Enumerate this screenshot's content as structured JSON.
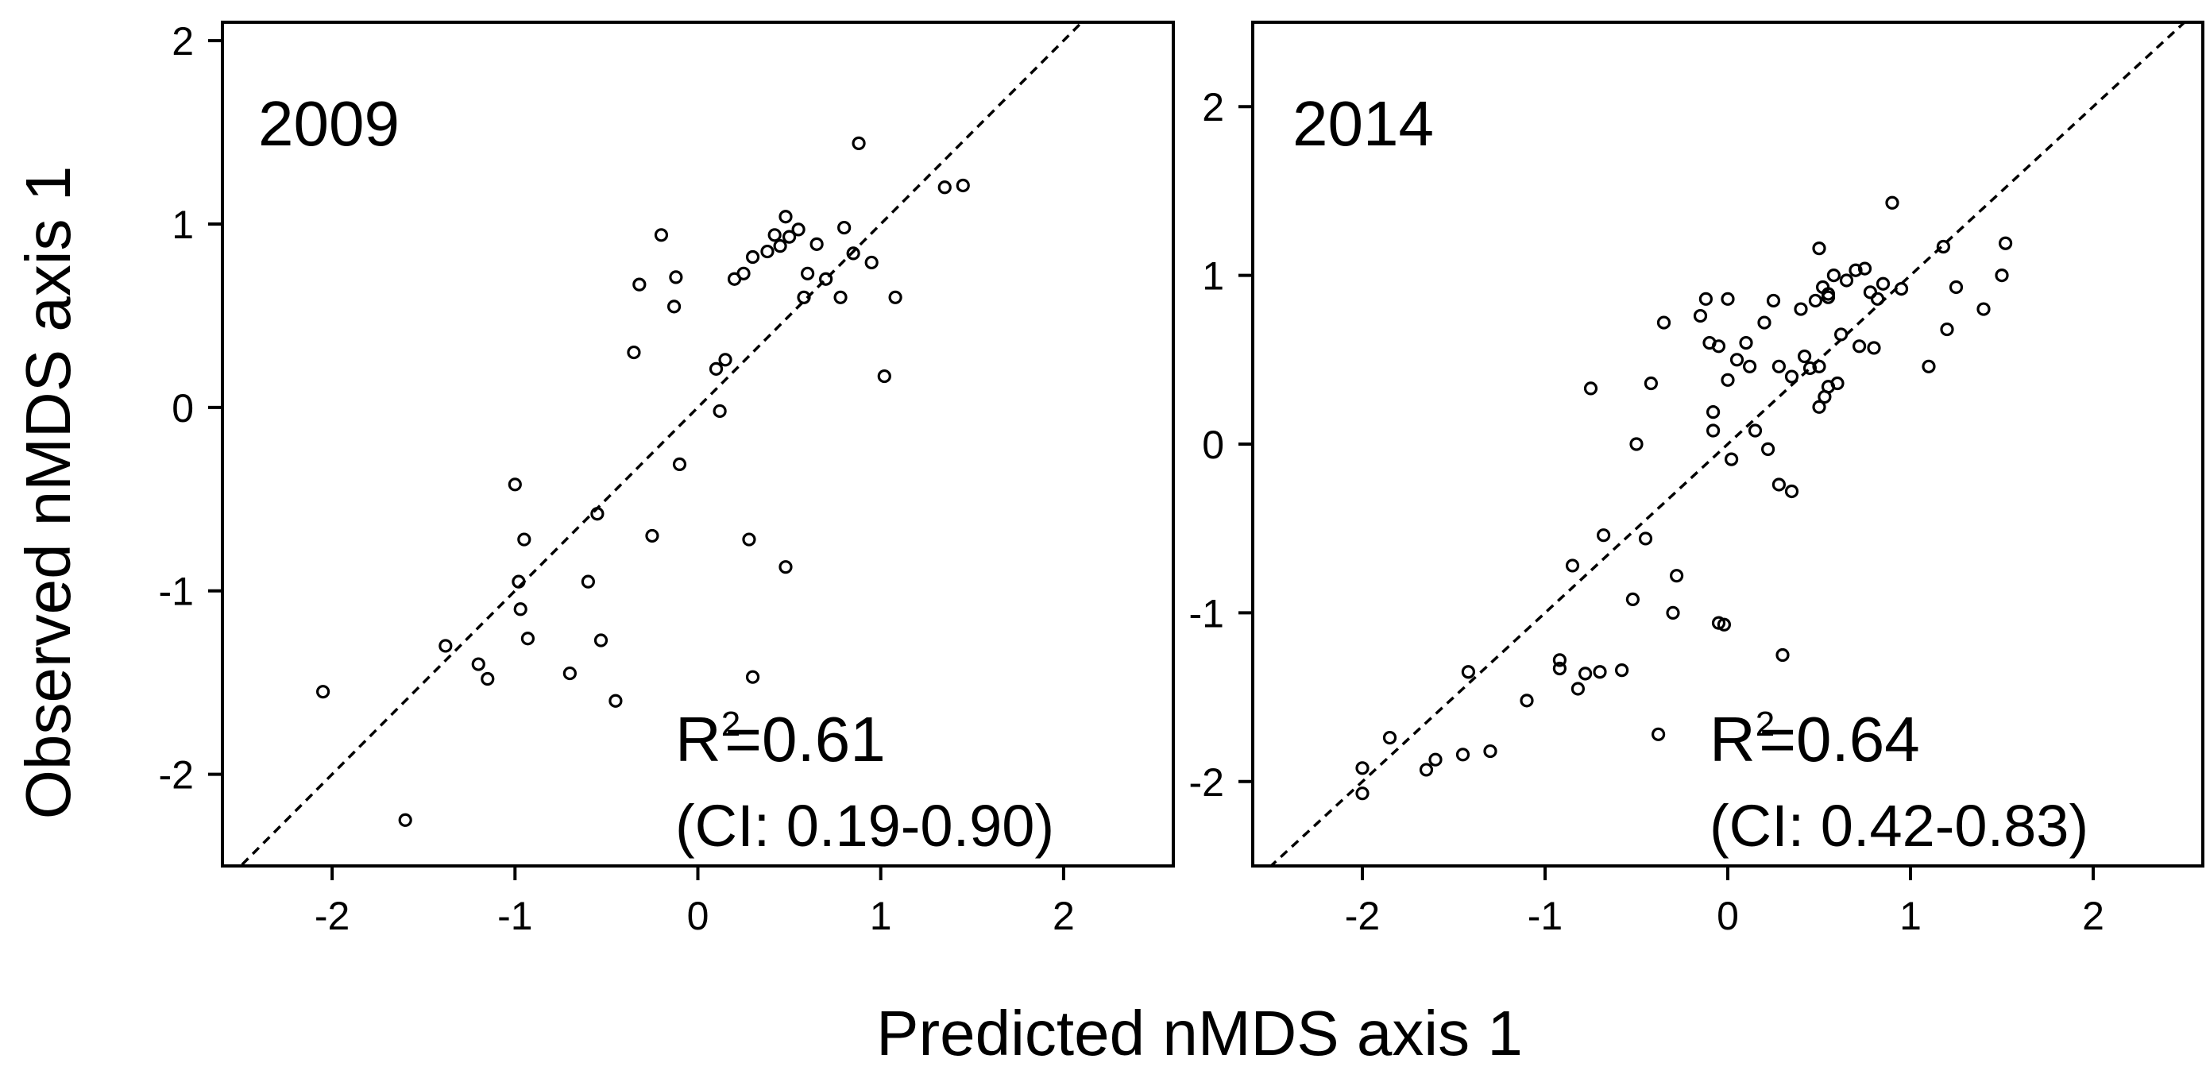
{
  "figure": {
    "shared_ylabel": "Observed nMDS axis 1",
    "shared_xlabel": "Predicted nMDS axis 1"
  },
  "chart_data": [
    {
      "type": "scatter",
      "title": "2009",
      "xlabel": "Predicted nMDS axis 1",
      "ylabel": "Observed nMDS axis 1",
      "xlim": [
        -2.6,
        2.6
      ],
      "ylim": [
        -2.5,
        2.1
      ],
      "xticks": [
        -2,
        -1,
        0,
        1,
        2
      ],
      "yticks": [
        -2,
        -1,
        0,
        1,
        2
      ],
      "reference_line": "y = x (dashed)",
      "annotation": {
        "r2": "=0.61",
        "ci": "(CI: 0.19-0.90)"
      },
      "x": [
        -2.05,
        -1.6,
        -1.38,
        -1.2,
        -1.15,
        -1.0,
        -0.98,
        -0.97,
        -0.95,
        -0.93,
        -0.7,
        -0.6,
        -0.55,
        -0.53,
        -0.45,
        -0.35,
        -0.32,
        -0.25,
        -0.2,
        -0.13,
        -0.12,
        -0.1,
        0.1,
        0.12,
        0.15,
        0.2,
        0.25,
        0.28,
        0.3,
        0.3,
        0.38,
        0.42,
        0.45,
        0.48,
        0.48,
        0.5,
        0.55,
        0.58,
        0.6,
        0.65,
        0.7,
        0.78,
        0.8,
        0.85,
        0.88,
        0.95,
        1.02,
        1.08,
        1.35,
        1.45
      ],
      "y": [
        -1.55,
        -2.25,
        -1.3,
        -1.4,
        -1.48,
        -0.42,
        -0.95,
        -1.1,
        -0.72,
        -1.26,
        -1.45,
        -0.95,
        -0.58,
        -1.27,
        -1.6,
        0.3,
        0.67,
        -0.7,
        0.94,
        0.55,
        0.71,
        -0.31,
        0.21,
        -0.02,
        0.26,
        0.7,
        0.73,
        -0.72,
        0.82,
        -1.47,
        0.85,
        0.94,
        0.88,
        -0.87,
        1.04,
        0.93,
        0.97,
        0.6,
        0.73,
        0.89,
        0.7,
        0.6,
        0.98,
        0.84,
        1.44,
        0.79,
        0.17,
        0.6,
        1.2,
        1.21
      ]
    },
    {
      "type": "scatter",
      "title": "2014",
      "xlabel": "Predicted nMDS axis 1",
      "ylabel": "Observed nMDS axis 1",
      "xlim": [
        -2.6,
        2.6
      ],
      "ylim": [
        -2.5,
        2.5
      ],
      "xticks": [
        -2,
        -1,
        0,
        1,
        2
      ],
      "yticks": [
        -2,
        -1,
        0,
        1,
        2
      ],
      "reference_line": "y = x (dashed)",
      "annotation": {
        "r2": "=0.64",
        "ci": "(CI: 0.42-0.83)"
      },
      "x": [
        -2.0,
        -2.0,
        -1.85,
        -1.65,
        -1.6,
        -1.45,
        -1.42,
        -1.3,
        -1.1,
        -0.92,
        -0.92,
        -0.85,
        -0.82,
        -0.78,
        -0.75,
        -0.7,
        -0.68,
        -0.58,
        -0.52,
        -0.5,
        -0.45,
        -0.42,
        -0.38,
        -0.35,
        -0.3,
        -0.28,
        -0.15,
        -0.12,
        -0.1,
        -0.08,
        -0.08,
        -0.05,
        -0.05,
        -0.02,
        0.0,
        0.0,
        0.02,
        0.05,
        0.1,
        0.12,
        0.15,
        0.2,
        0.22,
        0.25,
        0.28,
        0.28,
        0.3,
        0.35,
        0.35,
        0.4,
        0.42,
        0.45,
        0.48,
        0.5,
        0.5,
        0.5,
        0.52,
        0.53,
        0.55,
        0.55,
        0.55,
        0.58,
        0.6,
        0.62,
        0.65,
        0.7,
        0.72,
        0.75,
        0.78,
        0.8,
        0.82,
        0.85,
        0.9,
        0.95,
        1.1,
        1.18,
        1.2,
        1.25,
        1.4,
        1.5,
        1.52
      ],
      "y": [
        -1.92,
        -2.07,
        -1.74,
        -1.93,
        -1.87,
        -1.84,
        -1.35,
        -1.82,
        -1.52,
        -1.28,
        -1.33,
        -0.72,
        -1.45,
        -1.36,
        0.33,
        -1.35,
        -0.54,
        -1.34,
        -0.92,
        0.0,
        -0.56,
        0.36,
        -1.72,
        0.72,
        -1.0,
        -0.78,
        0.76,
        0.86,
        0.6,
        0.08,
        0.19,
        0.58,
        -1.06,
        -1.07,
        0.38,
        0.86,
        -0.09,
        0.5,
        0.6,
        0.46,
        0.08,
        0.72,
        -0.03,
        0.85,
        0.46,
        -0.24,
        -1.25,
        -0.28,
        0.4,
        0.8,
        0.52,
        0.45,
        0.85,
        1.16,
        0.46,
        0.22,
        0.93,
        0.28,
        0.34,
        0.87,
        0.89,
        1.0,
        0.36,
        0.65,
        0.97,
        1.03,
        0.58,
        1.04,
        0.9,
        0.57,
        0.86,
        0.95,
        1.43,
        0.92,
        0.46,
        1.17,
        0.68,
        0.93,
        0.8,
        1.0,
        1.19
      ]
    }
  ]
}
